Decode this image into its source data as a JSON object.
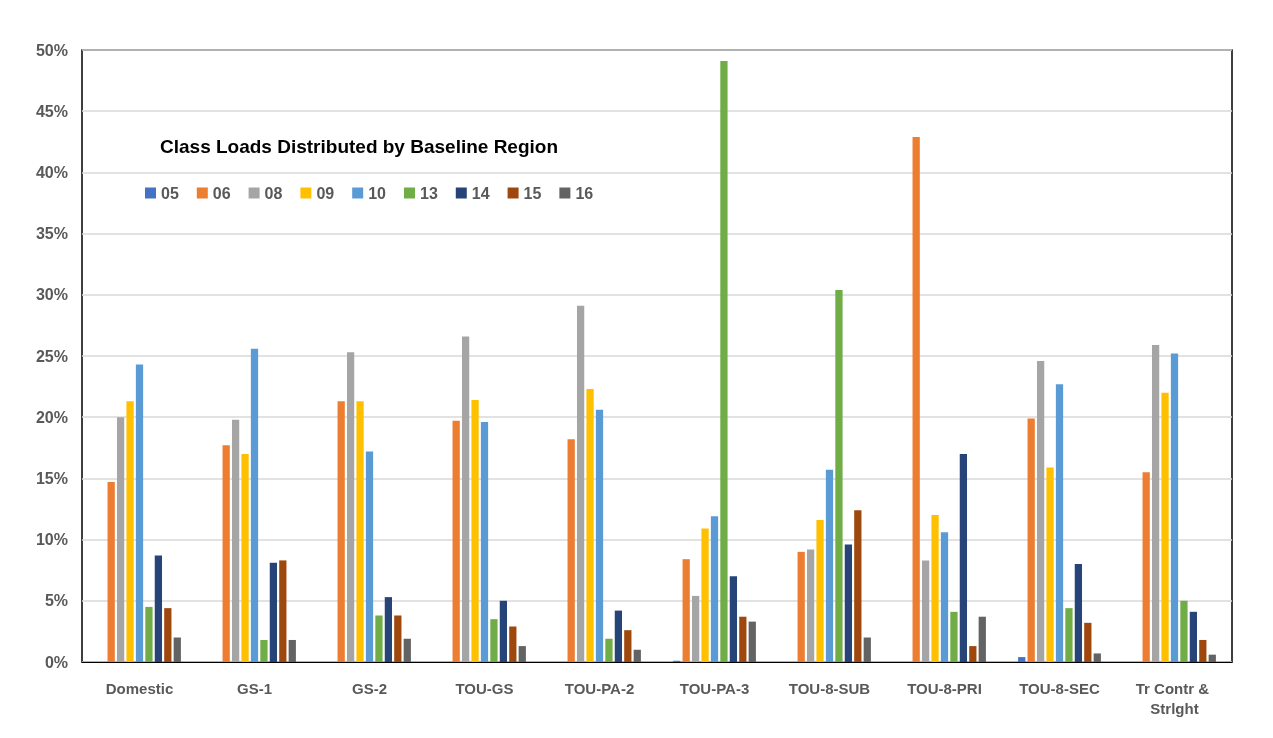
{
  "chart_data": {
    "type": "bar",
    "title": "Class Loads Distributed by Baseline Region",
    "categories": [
      "Domestic",
      "GS-1",
      "GS-2",
      "TOU-GS",
      "TOU-PA-2",
      "TOU-PA-3",
      "TOU-8-SUB",
      "TOU-8-PRI",
      "TOU-8-SEC",
      "Tr Contr & Strlght"
    ],
    "series": [
      {
        "name": "05",
        "color": "#4472c4",
        "values": [
          0,
          0,
          0,
          0,
          0,
          0.1,
          0,
          0,
          0.4,
          0
        ]
      },
      {
        "name": "06",
        "color": "#ed7d31",
        "values": [
          14.7,
          17.7,
          21.3,
          19.7,
          18.2,
          8.4,
          9.0,
          42.9,
          19.9,
          15.5
        ]
      },
      {
        "name": "08",
        "color": "#a5a5a5",
        "values": [
          20.0,
          19.8,
          25.3,
          26.6,
          29.1,
          5.4,
          9.2,
          8.3,
          24.6,
          25.9
        ]
      },
      {
        "name": "09",
        "color": "#ffc000",
        "values": [
          21.3,
          17.0,
          21.3,
          21.4,
          22.3,
          10.9,
          11.6,
          12.0,
          15.9,
          22.0
        ]
      },
      {
        "name": "10",
        "color": "#5b9bd5",
        "values": [
          24.3,
          25.6,
          17.2,
          19.6,
          20.6,
          11.9,
          15.7,
          10.6,
          22.7,
          25.2
        ]
      },
      {
        "name": "13",
        "color": "#70ad47",
        "values": [
          4.5,
          1.8,
          3.8,
          3.5,
          1.9,
          49.1,
          30.4,
          4.1,
          4.4,
          5.0
        ]
      },
      {
        "name": "14",
        "color": "#264478",
        "values": [
          8.7,
          8.1,
          5.3,
          5.0,
          4.2,
          7.0,
          9.6,
          17.0,
          8.0,
          4.1
        ]
      },
      {
        "name": "15",
        "color": "#9e480e",
        "values": [
          4.4,
          8.3,
          3.8,
          2.9,
          2.6,
          3.7,
          12.4,
          1.3,
          3.2,
          1.8
        ]
      },
      {
        "name": "16",
        "color": "#636363",
        "values": [
          2.0,
          1.8,
          1.9,
          1.3,
          1.0,
          3.3,
          2.0,
          3.7,
          0.7,
          0.6
        ]
      }
    ],
    "ylim": [
      0,
      50
    ],
    "yticks": [
      {
        "value": 0,
        "label": "0%"
      },
      {
        "value": 5,
        "label": "5%"
      },
      {
        "value": 10,
        "label": "10%"
      },
      {
        "value": 15,
        "label": "15%"
      },
      {
        "value": 20,
        "label": "20%"
      },
      {
        "value": 25,
        "label": "25%"
      },
      {
        "value": 30,
        "label": "30%"
      },
      {
        "value": 35,
        "label": "35%"
      },
      {
        "value": 40,
        "label": "40%"
      },
      {
        "value": 45,
        "label": "45%"
      },
      {
        "value": 50,
        "label": "50%"
      }
    ],
    "grid": "y",
    "legend": "top left"
  }
}
